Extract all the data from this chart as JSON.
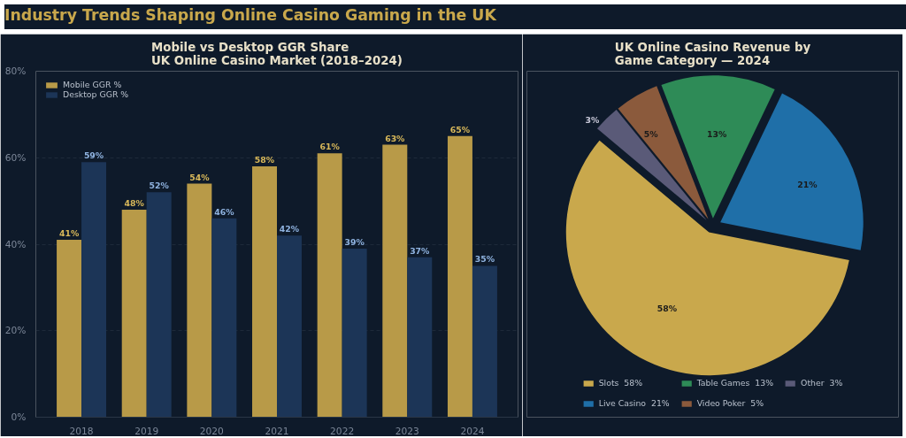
{
  "chart_data": [
    {
      "type": "other",
      "title": "Industry Trends Shaping Online Casino Gaming in the UK"
    },
    {
      "type": "bar",
      "title": "Mobile vs Desktop GGR Share\nUK Online Casino Market (2018–2024)",
      "categories": [
        "2018",
        "2019",
        "2020",
        "2021",
        "2022",
        "2023",
        "2024"
      ],
      "series": [
        {
          "name": "Mobile GGR %",
          "color": "#b89a48",
          "values": [
            41,
            48,
            54,
            58,
            61,
            63,
            65
          ],
          "value_labels": [
            "41%",
            "48%",
            "54%",
            "58%",
            "61%",
            "63%",
            "65%"
          ]
        },
        {
          "name": "Desktop GGR %",
          "color": "#1c3557",
          "values": [
            59,
            52,
            46,
            42,
            39,
            37,
            35
          ],
          "value_labels": [
            "59%",
            "52%",
            "46%",
            "42%",
            "39%",
            "37%",
            "35%"
          ]
        }
      ],
      "ylim": [
        0,
        80
      ],
      "yticks": [
        {
          "value": 0,
          "label": "0%"
        },
        {
          "value": 20,
          "label": "20%"
        },
        {
          "value": 40,
          "label": "40%"
        },
        {
          "value": 60,
          "label": "60%"
        },
        {
          "value": 80,
          "label": "80%"
        }
      ],
      "grid": "y",
      "legend": "top left"
    },
    {
      "type": "pie",
      "title": "UK Online Casino Revenue by\nGame Category — 2024",
      "categories": [
        "Slots",
        "Live Casino",
        "Table Games",
        "Video Poker",
        "Other"
      ],
      "values": [
        58,
        21,
        13,
        5,
        3
      ],
      "value_labels": [
        "58%",
        "21%",
        "13%",
        "5%",
        "3%"
      ],
      "colors": [
        "#c9a84c",
        "#1f6fa8",
        "#2e8b57",
        "#8b5a3c",
        "#5a5a78"
      ],
      "legend": "bottom"
    }
  ]
}
